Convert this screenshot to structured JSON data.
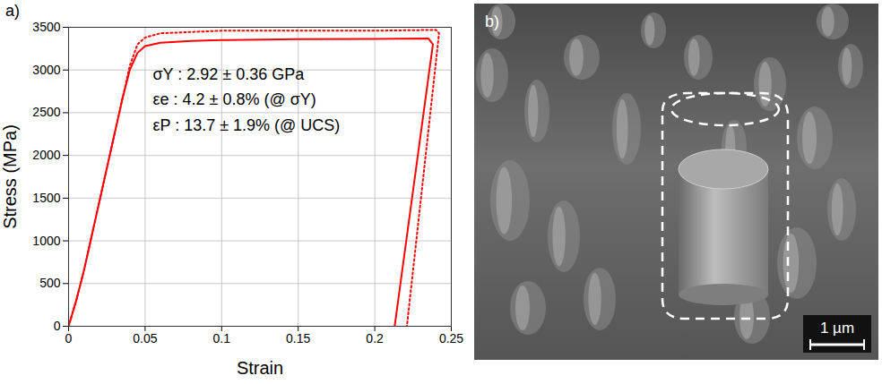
{
  "chart_data": {
    "type": "line",
    "panel_label": "a)",
    "x_label": "Strain",
    "y_label": "Stress (MPa)",
    "xlim": [
      0,
      0.25
    ],
    "xticks": [
      0,
      0.05,
      0.1,
      0.15,
      0.2,
      0.25
    ],
    "ylim": [
      0,
      3500
    ],
    "yticks": [
      0,
      500,
      1000,
      1500,
      2000,
      2500,
      3000,
      3500
    ],
    "grid": true,
    "annotations": [
      {
        "text": "σY : 2.92 ± 0.36 GPa",
        "x": 0.055,
        "y": 2950
      },
      {
        "text": "εe : 4.2 ± 0.8% (@ σY)",
        "x": 0.055,
        "y": 2650
      },
      {
        "text": "εP : 13.7 ± 1.9% (@ UCS)",
        "x": 0.055,
        "y": 2350
      }
    ],
    "series": [
      {
        "color": "#ff0000",
        "line_style": "solid",
        "x": [
          0,
          0.005,
          0.01,
          0.015,
          0.02,
          0.025,
          0.03,
          0.035,
          0.04,
          0.045,
          0.05,
          0.06,
          0.08,
          0.1,
          0.15,
          0.2,
          0.235,
          0.238,
          0.2357,
          0.213
        ],
        "values": [
          0,
          300,
          650,
          1050,
          1450,
          1850,
          2250,
          2650,
          3000,
          3200,
          3280,
          3320,
          3340,
          3350,
          3360,
          3365,
          3370,
          3300,
          3000,
          0
        ]
      },
      {
        "color": "#ff0000",
        "line_style": "dotted",
        "x": [
          0,
          0.005,
          0.01,
          0.015,
          0.02,
          0.025,
          0.03,
          0.035,
          0.04,
          0.045,
          0.05,
          0.06,
          0.08,
          0.1,
          0.15,
          0.2,
          0.24,
          0.242,
          0.221
        ],
        "values": [
          0,
          300,
          650,
          1050,
          1450,
          1850,
          2250,
          2650,
          3050,
          3300,
          3380,
          3430,
          3445,
          3460,
          3460,
          3460,
          3470,
          3430,
          0
        ]
      }
    ]
  },
  "image_panel": {
    "label": "b)",
    "scale_bar_label": "1 µm"
  }
}
